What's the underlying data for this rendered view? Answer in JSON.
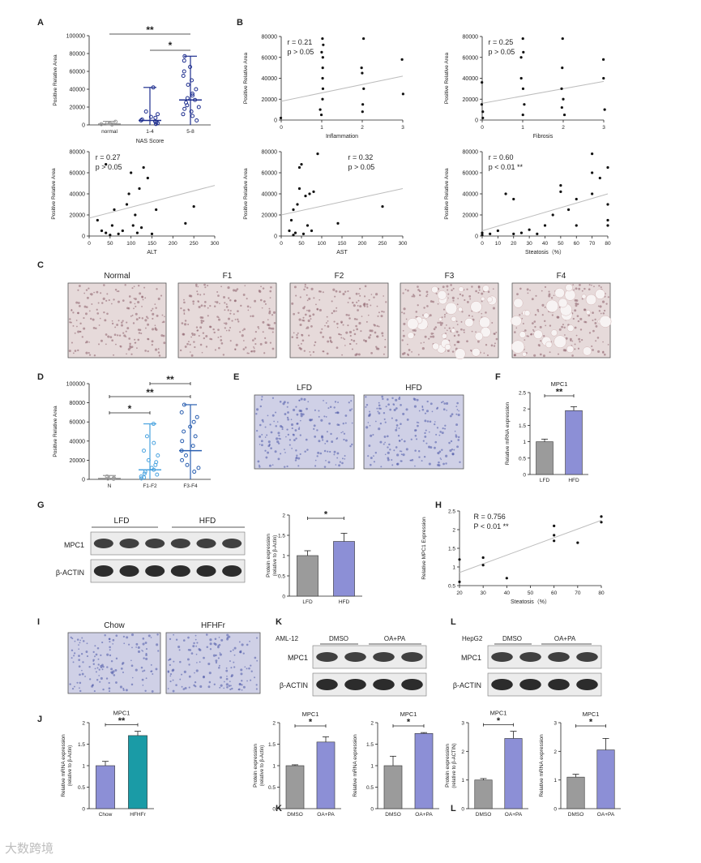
{
  "colors": {
    "navy": "#1f2f8f",
    "lightblue": "#4aa3df",
    "blue2": "#2a5fb0",
    "gray": "#9b9b9b",
    "purple": "#8c8fd6",
    "teal": "#1a9ba6",
    "line": "#bdbdbd"
  },
  "panel_labels": {
    "A": "A",
    "B": "B",
    "C": "C",
    "D": "D",
    "E": "E",
    "F": "F",
    "G": "G",
    "H": "H",
    "I": "I",
    "J": "J",
    "K": "K",
    "L": "L"
  },
  "common": {
    "y_label": "Positive Relative Area",
    "mrna_label": "Relative mRNA expression",
    "protein_label": "Protein expression",
    "rel_actin": "(relative to β-Actin)",
    "rel_actin_caps": "(relative to β-ACTIN)",
    "mpc1": "MPC1",
    "actin": "β-ACTIN",
    "star1": "*",
    "star2": "**"
  },
  "stains": {
    "C": [
      "Normal",
      "F1",
      "F2",
      "F3",
      "F4"
    ],
    "E": [
      "LFD",
      "HFD"
    ],
    "I": [
      "Chow",
      "HFHFr"
    ]
  },
  "blots": {
    "G": {
      "groups": [
        "LFD",
        "HFD"
      ],
      "rows": [
        "MPC1",
        "β-ACTIN"
      ]
    },
    "K": {
      "cell": "AML-12",
      "groups": [
        "DMSO",
        "OA+PA"
      ],
      "rows": [
        "MPC1",
        "β-ACTIN"
      ]
    },
    "L": {
      "cell": "HepG2",
      "groups": [
        "DMSO",
        "OA+PA"
      ],
      "rows": [
        "MPC1",
        "β-ACTIN"
      ]
    }
  },
  "watermark": "大数跨境",
  "chart_data": [
    {
      "id": "A",
      "type": "scatter",
      "xlabel": "NAS Score",
      "ylabel": "Positive Relative Area",
      "ylim": [
        0,
        100000
      ],
      "yticks": [
        0,
        20000,
        40000,
        60000,
        80000,
        100000
      ],
      "categories": [
        "normal",
        "1-4",
        "5-8"
      ],
      "medians": [
        1000,
        5000,
        28000
      ],
      "ranges": [
        [
          0,
          4000
        ],
        [
          0,
          42000
        ],
        [
          0,
          77000
        ]
      ],
      "points": [
        [
          800,
          2000,
          500,
          3500,
          1500
        ],
        [
          2000,
          5000,
          8000,
          3000,
          12000,
          42000,
          1000,
          6000,
          9000,
          15000,
          4000
        ],
        [
          5000,
          10000,
          15000,
          20000,
          25000,
          28000,
          30000,
          35000,
          40000,
          45000,
          55000,
          60000,
          65000,
          72000,
          77000,
          12000,
          18000,
          22000,
          33000,
          50000
        ]
      ],
      "sig": [
        {
          "from": 0,
          "to": 2,
          "label": "**"
        },
        {
          "from": 1,
          "to": 2,
          "label": "*"
        }
      ]
    },
    {
      "id": "B-inflammation",
      "type": "scatter",
      "xlabel": "Inflammation",
      "ylabel": "Positive Relative Area",
      "xlim": [
        0,
        3
      ],
      "ylim": [
        0,
        80000
      ],
      "xticks": [
        0,
        1,
        2,
        3
      ],
      "yticks": [
        0,
        20000,
        40000,
        60000,
        80000
      ],
      "stat": [
        "r = 0.21",
        "p > 0.05"
      ],
      "fit": [
        [
          0,
          18000
        ],
        [
          3,
          42000
        ]
      ],
      "points": [
        [
          0,
          2000
        ],
        [
          1,
          5000
        ],
        [
          1,
          10000
        ],
        [
          1,
          20000
        ],
        [
          1,
          30000
        ],
        [
          1,
          40000
        ],
        [
          1,
          50000
        ],
        [
          1,
          60000
        ],
        [
          1,
          65000
        ],
        [
          1,
          72000
        ],
        [
          1,
          78000
        ],
        [
          2,
          8000
        ],
        [
          2,
          15000
        ],
        [
          2,
          30000
        ],
        [
          2,
          45000
        ],
        [
          2,
          50000
        ],
        [
          2,
          78000
        ],
        [
          3,
          25000
        ],
        [
          3,
          58000
        ]
      ]
    },
    {
      "id": "B-fibrosis",
      "type": "scatter",
      "xlabel": "Fibrosis",
      "ylabel": "Positive Relative Area",
      "xlim": [
        0,
        3
      ],
      "ylim": [
        0,
        80000
      ],
      "xticks": [
        0,
        1,
        2,
        3
      ],
      "yticks": [
        0,
        20000,
        40000,
        60000,
        80000
      ],
      "stat": [
        "r = 0.25",
        "p > 0.05"
      ],
      "fit": [
        [
          0,
          16000
        ],
        [
          3,
          37000
        ]
      ],
      "points": [
        [
          0,
          2000
        ],
        [
          0,
          8000
        ],
        [
          0,
          15000
        ],
        [
          0,
          36000
        ],
        [
          1,
          5000
        ],
        [
          1,
          15000
        ],
        [
          1,
          30000
        ],
        [
          1,
          40000
        ],
        [
          1,
          60000
        ],
        [
          1,
          65000
        ],
        [
          1,
          78000
        ],
        [
          2,
          5000
        ],
        [
          2,
          12000
        ],
        [
          2,
          20000
        ],
        [
          2,
          30000
        ],
        [
          2,
          50000
        ],
        [
          2,
          78000
        ],
        [
          3,
          10000
        ],
        [
          3,
          40000
        ],
        [
          3,
          58000
        ]
      ]
    },
    {
      "id": "B-ALT",
      "type": "scatter",
      "xlabel": "ALT",
      "ylabel": "Positive Relative Area",
      "xlim": [
        0,
        300
      ],
      "ylim": [
        0,
        80000
      ],
      "xticks": [
        0,
        50,
        100,
        150,
        200,
        250,
        300
      ],
      "yticks": [
        0,
        20000,
        40000,
        60000,
        80000
      ],
      "stat": [
        "r = 0.27",
        "p > 0.05"
      ],
      "fit": [
        [
          0,
          17000
        ],
        [
          300,
          48000
        ]
      ],
      "points": [
        [
          20,
          15000
        ],
        [
          30,
          5000
        ],
        [
          40,
          3000
        ],
        [
          50,
          1000
        ],
        [
          55,
          10000
        ],
        [
          60,
          25000
        ],
        [
          70,
          2000
        ],
        [
          80,
          5000
        ],
        [
          90,
          30000
        ],
        [
          95,
          40000
        ],
        [
          100,
          60000
        ],
        [
          105,
          10000
        ],
        [
          110,
          20000
        ],
        [
          115,
          3000
        ],
        [
          120,
          45000
        ],
        [
          125,
          8000
        ],
        [
          130,
          65000
        ],
        [
          140,
          55000
        ],
        [
          150,
          2000
        ],
        [
          160,
          25000
        ],
        [
          230,
          12000
        ],
        [
          250,
          28000
        ],
        [
          40,
          68000
        ]
      ]
    },
    {
      "id": "B-AST",
      "type": "scatter",
      "xlabel": "AST",
      "ylabel": "Positive Relative Area",
      "xlim": [
        0,
        300
      ],
      "ylim": [
        0,
        80000
      ],
      "xticks": [
        0,
        50,
        100,
        150,
        200,
        250,
        300
      ],
      "yticks": [
        0,
        20000,
        40000,
        60000,
        80000
      ],
      "stat": [
        "r = 0.32",
        "p > 0.05"
      ],
      "fit": [
        [
          0,
          20000
        ],
        [
          300,
          45000
        ]
      ],
      "points": [
        [
          20,
          5000
        ],
        [
          25,
          15000
        ],
        [
          30,
          25000
        ],
        [
          35,
          3000
        ],
        [
          40,
          30000
        ],
        [
          45,
          65000
        ],
        [
          50,
          68000
        ],
        [
          55,
          2000
        ],
        [
          60,
          38000
        ],
        [
          65,
          10000
        ],
        [
          70,
          40000
        ],
        [
          75,
          5000
        ],
        [
          80,
          42000
        ],
        [
          90,
          78000
        ],
        [
          140,
          12000
        ],
        [
          250,
          28000
        ],
        [
          30,
          1000
        ],
        [
          45,
          45000
        ]
      ]
    },
    {
      "id": "B-steatosis",
      "type": "scatter",
      "xlabel": "Steatosis（%）",
      "ylabel": "Positive Relative Area",
      "xlim": [
        0,
        80
      ],
      "ylim": [
        0,
        80000
      ],
      "xticks": [
        0,
        10,
        20,
        30,
        40,
        50,
        60,
        70,
        80
      ],
      "yticks": [
        0,
        20000,
        40000,
        60000,
        80000
      ],
      "stat": [
        "r = 0.60",
        "p < 0.01 **"
      ],
      "fit": [
        [
          0,
          5000
        ],
        [
          80,
          40000
        ]
      ],
      "points": [
        [
          0,
          1000
        ],
        [
          0,
          3000
        ],
        [
          5,
          2000
        ],
        [
          10,
          5000
        ],
        [
          15,
          40000
        ],
        [
          20,
          35000
        ],
        [
          20,
          2000
        ],
        [
          25,
          3000
        ],
        [
          30,
          6000
        ],
        [
          35,
          2000
        ],
        [
          40,
          10000
        ],
        [
          45,
          20000
        ],
        [
          50,
          48000
        ],
        [
          50,
          42000
        ],
        [
          55,
          25000
        ],
        [
          60,
          10000
        ],
        [
          60,
          35000
        ],
        [
          70,
          78000
        ],
        [
          70,
          60000
        ],
        [
          70,
          40000
        ],
        [
          75,
          55000
        ],
        [
          80,
          65000
        ],
        [
          80,
          30000
        ],
        [
          80,
          15000
        ],
        [
          80,
          10000
        ]
      ]
    },
    {
      "id": "D",
      "type": "scatter",
      "ylabel": "Positive Relative Area",
      "ylim": [
        0,
        100000
      ],
      "yticks": [
        0,
        20000,
        40000,
        60000,
        80000,
        100000
      ],
      "categories": [
        "N",
        "F1-F2",
        "F3-F4"
      ],
      "medians": [
        1000,
        10000,
        30000
      ],
      "ranges": [
        [
          0,
          4000
        ],
        [
          0,
          58000
        ],
        [
          0,
          78000
        ]
      ],
      "points": [
        [
          500,
          1500,
          3000,
          800
        ],
        [
          1000,
          2000,
          5000,
          8000,
          10000,
          12000,
          15000,
          20000,
          25000,
          30000,
          38000,
          45000,
          58000,
          3000,
          6000,
          18000
        ],
        [
          8000,
          12000,
          20000,
          25000,
          30000,
          35000,
          40000,
          45000,
          50000,
          55000,
          60000,
          65000,
          70000,
          78000,
          15000
        ]
      ],
      "sig": [
        {
          "from": 0,
          "to": 1,
          "label": "*"
        },
        {
          "from": 0,
          "to": 2,
          "label": "**"
        },
        {
          "from": 1,
          "to": 2,
          "label": "**"
        }
      ]
    },
    {
      "id": "F",
      "type": "bar",
      "title": "MPC1",
      "ylabel": "Relative mRNA expression",
      "categories": [
        "LFD",
        "HFD"
      ],
      "values": [
        1.0,
        1.95
      ],
      "errors": [
        0.08,
        0.12
      ],
      "ylim": [
        0,
        2.5
      ],
      "yticks": [
        0,
        0.5,
        1.0,
        1.5,
        2.0,
        2.5
      ],
      "sig": "**"
    },
    {
      "id": "G",
      "type": "bar",
      "ylabel": "Protein expression",
      "ylabel2": "(relative to β-Actin)",
      "categories": [
        "LFD",
        "HFD"
      ],
      "values": [
        1.0,
        1.35
      ],
      "errors": [
        0.12,
        0.2
      ],
      "ylim": [
        0,
        2.0
      ],
      "yticks": [
        0,
        0.5,
        1.0,
        1.5,
        2.0
      ],
      "sig": "*"
    },
    {
      "id": "H",
      "type": "scatter",
      "xlabel": "Steatosis（%）",
      "ylabel": "Relative MPC1 Expression",
      "xlim": [
        20,
        80
      ],
      "ylim": [
        0.5,
        2.5
      ],
      "xticks": [
        20,
        30,
        40,
        50,
        60,
        70,
        80
      ],
      "yticks": [
        0.5,
        1.0,
        1.5,
        2.0,
        2.5
      ],
      "stat": [
        "R = 0.756",
        "P < 0.01 **"
      ],
      "fit": [
        [
          20,
          0.85
        ],
        [
          80,
          2.25
        ]
      ],
      "points": [
        [
          20,
          0.6
        ],
        [
          20,
          1.2
        ],
        [
          30,
          1.05
        ],
        [
          30,
          1.25
        ],
        [
          40,
          0.7
        ],
        [
          60,
          1.7
        ],
        [
          60,
          1.85
        ],
        [
          60,
          2.1
        ],
        [
          70,
          1.65
        ],
        [
          80,
          2.35
        ],
        [
          80,
          2.2
        ]
      ]
    },
    {
      "id": "J",
      "type": "bar",
      "title": "MPC1",
      "ylabel": "Relative mRNA expression",
      "ylabel2": "(relative to β-Actin)",
      "categories": [
        "Chow",
        "HFHFr"
      ],
      "values": [
        1.0,
        1.7
      ],
      "errors": [
        0.1,
        0.1
      ],
      "ylim": [
        0,
        2.0
      ],
      "yticks": [
        0,
        0.5,
        1.0,
        1.5,
        2.0
      ],
      "sig": "**"
    },
    {
      "id": "K1",
      "type": "bar",
      "title": "MPC1",
      "ylabel": "Protein expression",
      "ylabel2": "(relative to β-Actin)",
      "categories": [
        "DMSO",
        "OA+PA"
      ],
      "values": [
        1.0,
        1.55
      ],
      "errors": [
        0.02,
        0.12
      ],
      "ylim": [
        0,
        2.0
      ],
      "yticks": [
        0,
        0.5,
        1.0,
        1.5,
        2.0
      ],
      "sig": "*"
    },
    {
      "id": "K2",
      "type": "bar",
      "title": "MPC1",
      "ylabel": "Relative mRNA expression",
      "categories": [
        "DMSO",
        "OA+PA"
      ],
      "values": [
        1.0,
        1.75
      ],
      "errors": [
        0.22,
        0.02
      ],
      "ylim": [
        0,
        2.0
      ],
      "yticks": [
        0,
        0.5,
        1.0,
        1.5,
        2.0
      ],
      "sig": "*"
    },
    {
      "id": "L1",
      "type": "bar",
      "title": "MPC1",
      "ylabel": "Protein expression",
      "ylabel2": "(relative to β-ACTIN)",
      "categories": [
        "DMSO",
        "OA+PA"
      ],
      "values": [
        1.0,
        2.45
      ],
      "errors": [
        0.05,
        0.25
      ],
      "ylim": [
        0,
        3
      ],
      "yticks": [
        0,
        1,
        2,
        3
      ],
      "sig": "*"
    },
    {
      "id": "L2",
      "type": "bar",
      "title": "MPC1",
      "ylabel": "Relative mRNA expression",
      "categories": [
        "DMSO",
        "OA+PA"
      ],
      "values": [
        1.1,
        2.05
      ],
      "errors": [
        0.1,
        0.4
      ],
      "ylim": [
        0,
        3
      ],
      "yticks": [
        0,
        1,
        2,
        3
      ],
      "sig": "*"
    }
  ]
}
